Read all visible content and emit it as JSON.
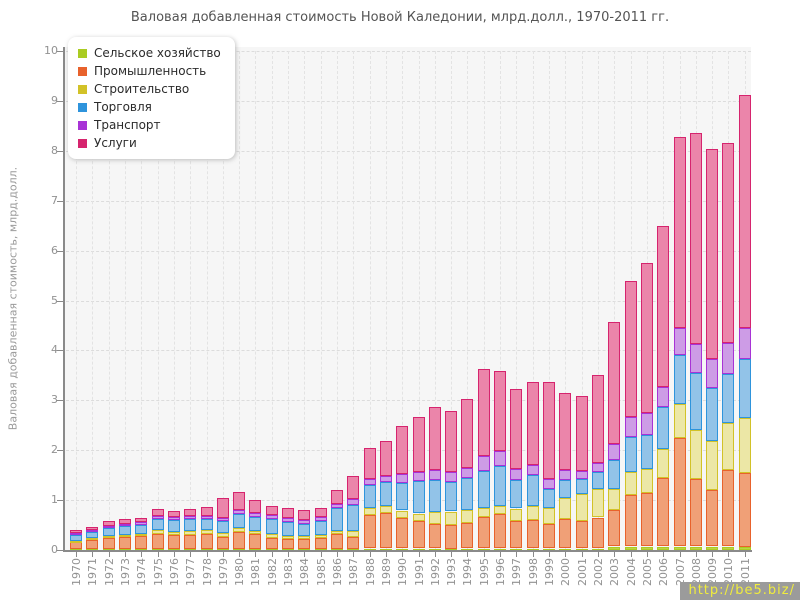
{
  "title": "Валовая добавленная стоимость Новой Каледонии, млрд.долл., 1970-2011 гг.",
  "watermark": "http://be5.biz/",
  "y_axis": {
    "title": "Валовая добавленная стоимость, млрд.долл.",
    "min": 0,
    "max": 10,
    "tick_labels": [
      "0",
      "1",
      "2",
      "3",
      "4",
      "5",
      "6",
      "7",
      "8",
      "9",
      "10"
    ]
  },
  "chart_data": {
    "type": "bar",
    "stacked": true,
    "title": "Валовая добавленная стоимость Новой Каледонии, млрд.долл., 1970-2011 гг.",
    "xlabel": "",
    "ylabel": "Валовая добавленная стоимость, млрд.долл.",
    "ylim": [
      0,
      10
    ],
    "grid": true,
    "legend_position": "top-left",
    "categories": [
      "1970",
      "1971",
      "1972",
      "1973",
      "1974",
      "1975",
      "1976",
      "1977",
      "1978",
      "1979",
      "1980",
      "1981",
      "1982",
      "1983",
      "1984",
      "1985",
      "1986",
      "1987",
      "1988",
      "1989",
      "1990",
      "1991",
      "1992",
      "1993",
      "1994",
      "1995",
      "1996",
      "1997",
      "1998",
      "1999",
      "2000",
      "2001",
      "2002",
      "2003",
      "2004",
      "2005",
      "2006",
      "2007",
      "2008",
      "2009",
      "2010",
      "2011"
    ],
    "series": [
      {
        "name": "Сельское хозяйство",
        "color": "#aacc22",
        "fill": "#bcd24a",
        "values": [
          0.02,
          0.02,
          0.02,
          0.02,
          0.02,
          0.02,
          0.02,
          0.02,
          0.02,
          0.02,
          0.02,
          0.02,
          0.02,
          0.02,
          0.02,
          0.02,
          0.02,
          0.02,
          0.03,
          0.03,
          0.03,
          0.03,
          0.03,
          0.03,
          0.03,
          0.03,
          0.03,
          0.03,
          0.03,
          0.03,
          0.03,
          0.03,
          0.03,
          0.07,
          0.07,
          0.07,
          0.07,
          0.07,
          0.07,
          0.07,
          0.07,
          0.07
        ]
      },
      {
        "name": "Промышленность",
        "color": "#e8622c",
        "fill": "#f0a077",
        "values": [
          0.15,
          0.19,
          0.23,
          0.24,
          0.26,
          0.31,
          0.28,
          0.29,
          0.31,
          0.25,
          0.35,
          0.3,
          0.23,
          0.2,
          0.21,
          0.23,
          0.3,
          0.24,
          0.67,
          0.72,
          0.62,
          0.55,
          0.5,
          0.47,
          0.52,
          0.64,
          0.7,
          0.55,
          0.57,
          0.5,
          0.59,
          0.55,
          0.62,
          0.73,
          1.03,
          1.07,
          1.37,
          2.17,
          1.35,
          1.13,
          1.53,
          1.48
        ]
      },
      {
        "name": "Строительство",
        "color": "#d2c228",
        "fill": "#ece7a6",
        "values": [
          0.02,
          0.03,
          0.03,
          0.04,
          0.05,
          0.07,
          0.06,
          0.07,
          0.07,
          0.08,
          0.07,
          0.07,
          0.08,
          0.07,
          0.06,
          0.06,
          0.07,
          0.12,
          0.15,
          0.14,
          0.14,
          0.15,
          0.23,
          0.27,
          0.25,
          0.18,
          0.15,
          0.25,
          0.28,
          0.31,
          0.43,
          0.55,
          0.57,
          0.42,
          0.47,
          0.48,
          0.58,
          0.69,
          0.98,
          0.99,
          0.94,
          1.1
        ]
      },
      {
        "name": "Торговля",
        "color": "#2e94dc",
        "fill": "#92c3e8",
        "values": [
          0.12,
          0.12,
          0.17,
          0.18,
          0.18,
          0.22,
          0.24,
          0.24,
          0.23,
          0.24,
          0.28,
          0.28,
          0.29,
          0.28,
          0.23,
          0.28,
          0.46,
          0.52,
          0.45,
          0.48,
          0.56,
          0.65,
          0.64,
          0.6,
          0.64,
          0.73,
          0.81,
          0.58,
          0.62,
          0.38,
          0.36,
          0.3,
          0.35,
          0.58,
          0.7,
          0.68,
          0.84,
          0.98,
          1.14,
          1.05,
          0.99,
          1.17
        ]
      },
      {
        "name": "Транспорт",
        "color": "#a833d6",
        "fill": "#cd9ce6",
        "values": [
          0.04,
          0.04,
          0.04,
          0.04,
          0.05,
          0.06,
          0.06,
          0.06,
          0.06,
          0.06,
          0.08,
          0.07,
          0.08,
          0.08,
          0.08,
          0.08,
          0.08,
          0.13,
          0.12,
          0.11,
          0.18,
          0.18,
          0.2,
          0.2,
          0.21,
          0.3,
          0.29,
          0.22,
          0.2,
          0.2,
          0.19,
          0.16,
          0.18,
          0.32,
          0.4,
          0.44,
          0.41,
          0.53,
          0.59,
          0.58,
          0.61,
          0.62
        ]
      },
      {
        "name": "Услуги",
        "color": "#d6246e",
        "fill": "#eb85aa",
        "values": [
          0.05,
          0.06,
          0.1,
          0.11,
          0.09,
          0.14,
          0.13,
          0.15,
          0.17,
          0.39,
          0.37,
          0.26,
          0.19,
          0.19,
          0.2,
          0.17,
          0.27,
          0.45,
          0.62,
          0.7,
          0.96,
          1.11,
          1.26,
          1.22,
          1.37,
          1.74,
          1.61,
          1.59,
          1.67,
          1.95,
          1.54,
          1.5,
          1.76,
          2.45,
          2.72,
          3.02,
          3.23,
          3.83,
          4.22,
          4.21,
          4.01,
          4.68
        ]
      }
    ]
  }
}
